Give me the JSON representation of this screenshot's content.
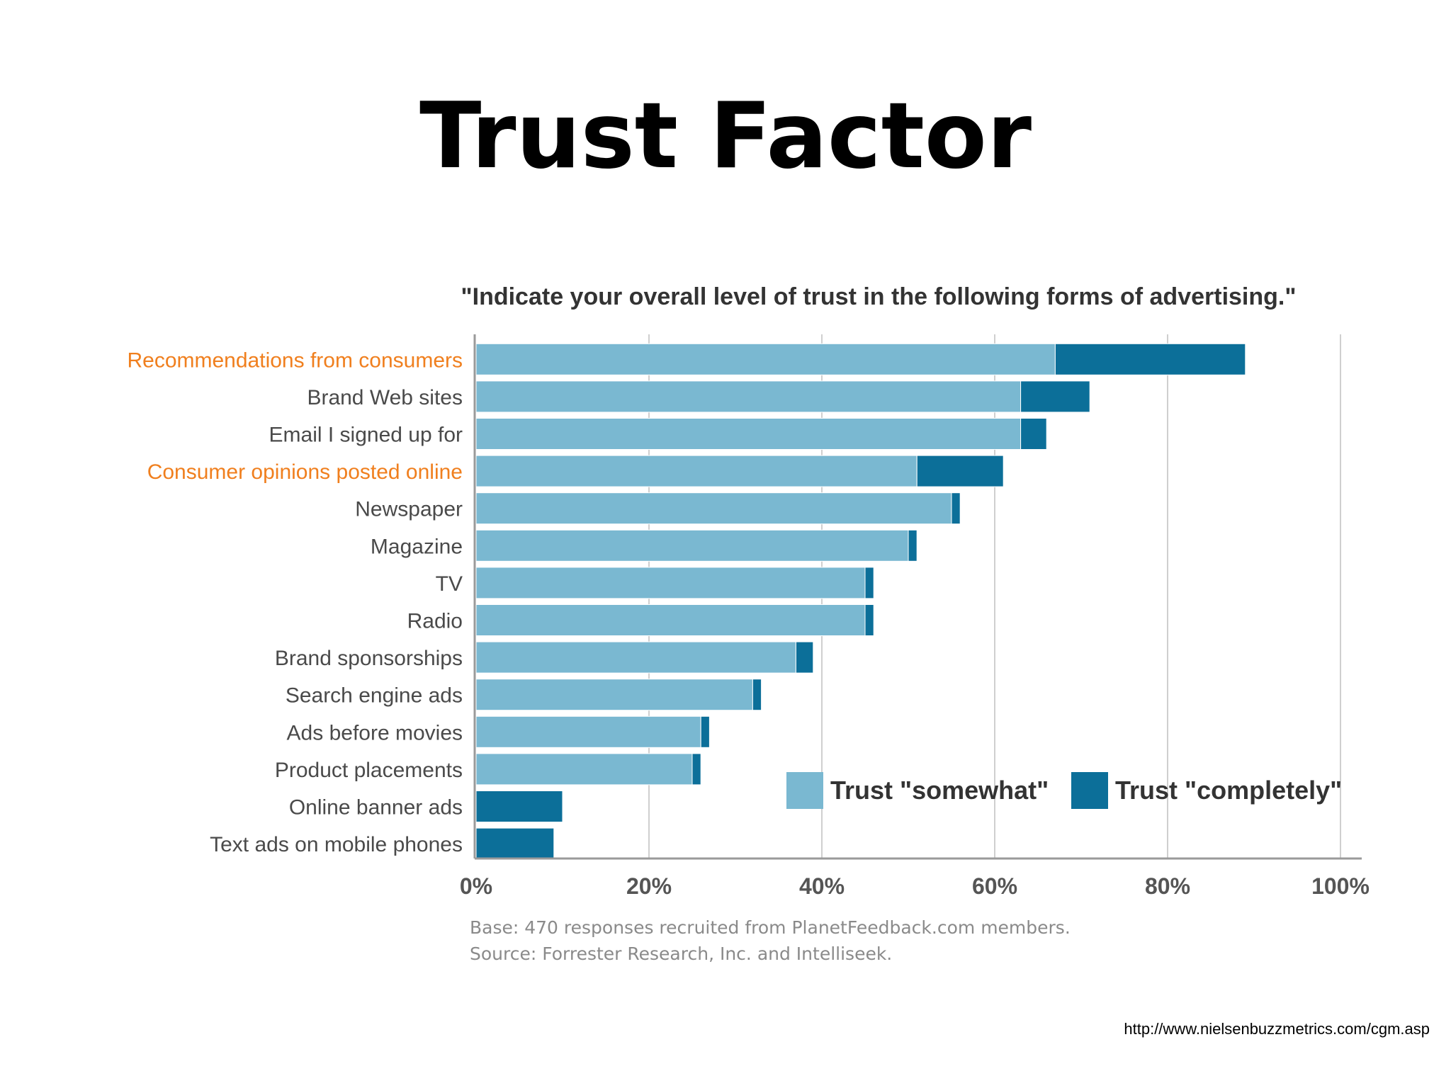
{
  "slide": {
    "title": "Trust Factor",
    "url": "http://www.nielsenbuzzmetrics.com/cgm.asp"
  },
  "chart_data": {
    "type": "bar",
    "orientation": "horizontal",
    "stacked": true,
    "title": "\"Indicate your overall level of trust in the following forms of advertising.\"",
    "categories": [
      "Recommendations from consumers",
      "Brand Web sites",
      "Email I signed up for",
      "Consumer opinions posted online",
      "Newspaper",
      "Magazine",
      "TV",
      "Radio",
      "Brand sponsorships",
      "Search engine ads",
      "Ads before movies",
      "Product placements",
      "Online banner ads",
      "Text ads on mobile phones"
    ],
    "highlighted_categories": [
      "Recommendations from consumers",
      "Consumer opinions posted online"
    ],
    "series": [
      {
        "name": "Trust \"somewhat\"",
        "color": "#7ab8d1",
        "values": [
          67,
          63,
          63,
          51,
          55,
          50,
          45,
          45,
          37,
          32,
          26,
          25,
          0,
          0
        ]
      },
      {
        "name": "Trust \"completely\"",
        "color": "#0c6f99",
        "values": [
          22,
          8,
          3,
          10,
          1,
          1,
          1,
          1,
          2,
          1,
          1,
          1,
          10,
          9
        ]
      }
    ],
    "xticks": [
      "0%",
      "20%",
      "40%",
      "60%",
      "80%",
      "100%"
    ],
    "xlim": [
      0,
      100
    ],
    "grid": true,
    "legend": "bottom-right, inside plot",
    "notes": [
      "Base: 470 responses recruited from PlanetFeedback.com members.",
      "Source: Forrester Research, Inc. and Intelliseek."
    ],
    "colors": {
      "highlight_label": "#f07f1e",
      "label": "#4a4a4a",
      "note": "#8a8a8a",
      "grid": "#cfcfcf"
    }
  }
}
